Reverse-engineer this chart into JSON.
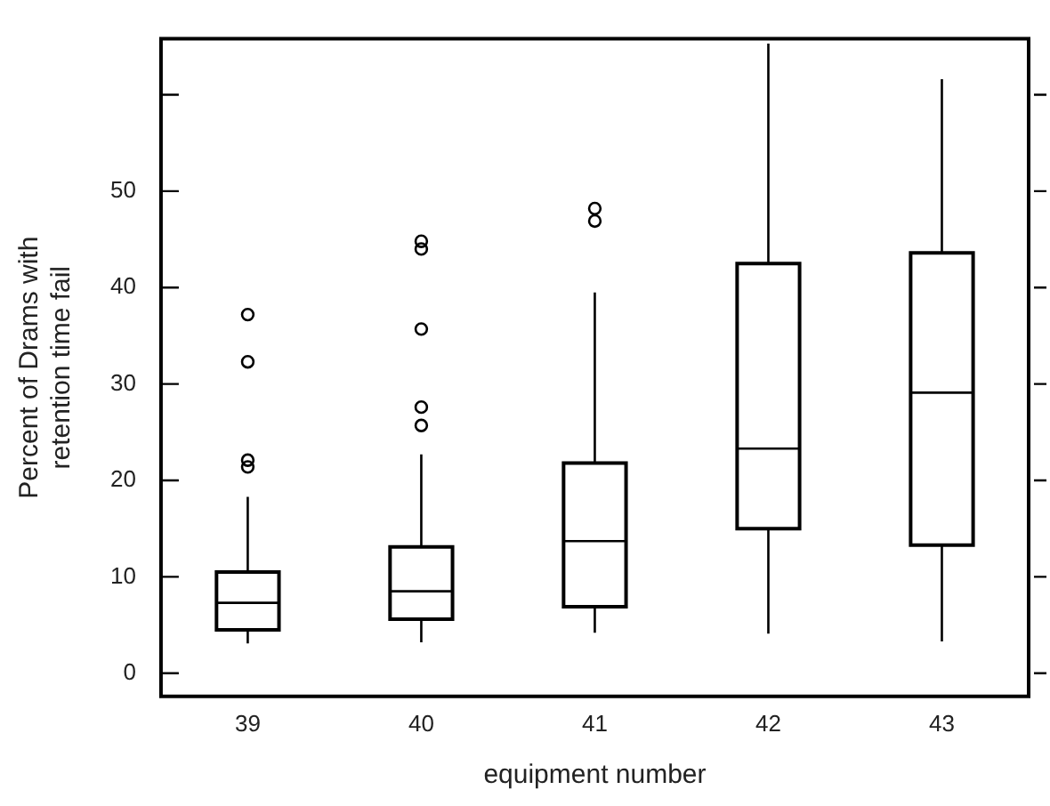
{
  "chart_data": {
    "type": "box",
    "xlabel": "equipment number",
    "ylabel": "Percent of Drams with\nretention time fail",
    "categories": [
      "39",
      "40",
      "41",
      "42",
      "43"
    ],
    "boxes": [
      {
        "low": 3.1,
        "q1": 4.5,
        "median": 7.3,
        "q3": 10.5,
        "high": 18.3,
        "outliers": [
          37.2,
          32.3,
          22.1,
          21.4
        ]
      },
      {
        "low": 3.2,
        "q1": 5.6,
        "median": 8.5,
        "q3": 13.1,
        "high": 22.7,
        "outliers": [
          44.8,
          44.0,
          35.7,
          27.6,
          25.7
        ]
      },
      {
        "low": 4.2,
        "q1": 6.9,
        "median": 13.7,
        "q3": 21.8,
        "high": 39.5,
        "outliers": [
          48.2,
          46.9
        ]
      },
      {
        "low": 4.1,
        "q1": 15.0,
        "median": 23.3,
        "q3": 42.5,
        "high": 65.3
      },
      {
        "low": 3.3,
        "q1": 13.3,
        "median": 29.1,
        "q3": 43.6,
        "high": 61.6
      }
    ],
    "color": "#000000",
    "ylim": [
      -2.4,
      65.8
    ],
    "yticks": [
      0,
      10,
      20,
      30,
      40,
      50,
      {
        "value": 60,
        "label": null
      }
    ],
    "grid": false
  }
}
